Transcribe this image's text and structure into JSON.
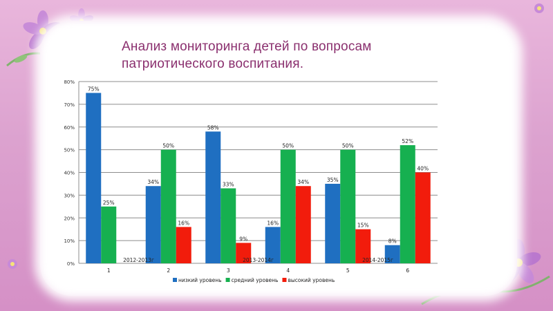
{
  "slide": {
    "title_line1": "Анализ мониторинга детей по вопросам",
    "title_line2": "патриотического воспитания."
  },
  "colors": {
    "background": "#dfa6d2",
    "card": "#ffffff",
    "title": "#8a2f6e"
  },
  "chart_data": {
    "type": "bar",
    "title": "",
    "xlabel": "",
    "ylabel": "",
    "categories": [
      "1",
      "2",
      "3",
      "4",
      "5",
      "6"
    ],
    "series": [
      {
        "name": "низкий уровень",
        "color": "#1f6fc1",
        "values": [
          75,
          34,
          58,
          16,
          35,
          8
        ]
      },
      {
        "name": "средний уровень",
        "color": "#16b050",
        "values": [
          25,
          50,
          33,
          50,
          50,
          52
        ]
      },
      {
        "name": "высокий уровень",
        "color": "#f21c0c",
        "values": [
          null,
          16,
          9,
          34,
          15,
          40
        ]
      }
    ],
    "data_labels": [
      [
        "75%",
        "34%",
        "58%",
        "16%",
        "35%",
        "8%"
      ],
      [
        "25%",
        "50%",
        "33%",
        "50%",
        "50%",
        "52%"
      ],
      [
        "",
        "16%",
        "9%",
        "34%",
        "15%",
        "40%"
      ]
    ],
    "ylim": [
      0,
      80
    ],
    "yticks": [
      0,
      10,
      20,
      30,
      40,
      50,
      60,
      70,
      80
    ],
    "ytick_labels": [
      "0%",
      "10%",
      "20%",
      "30%",
      "40%",
      "50%",
      "60%",
      "70%",
      "80%"
    ],
    "annotations": [
      {
        "text": "2012-2013г",
        "between": [
          "1",
          "2"
        ]
      },
      {
        "text": "2013-2014г",
        "between": [
          "3",
          "4"
        ]
      },
      {
        "text": "2014-2015г",
        "between": [
          "5",
          "6"
        ]
      }
    ],
    "grid": true,
    "legend_position": "bottom"
  }
}
